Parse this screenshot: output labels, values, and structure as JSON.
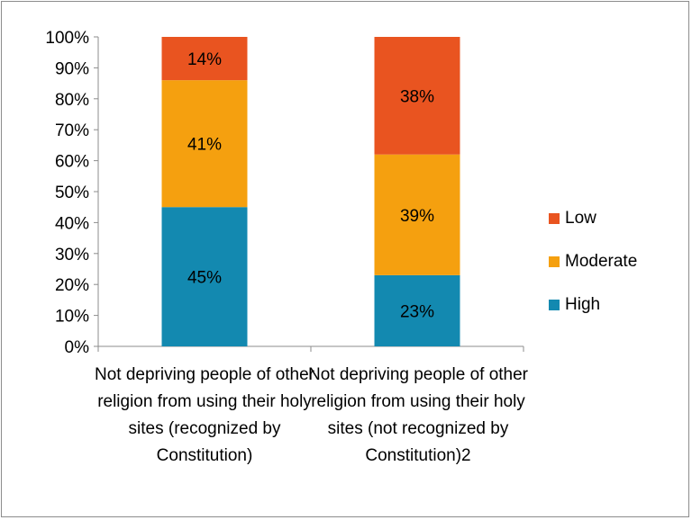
{
  "chart_data": {
    "type": "bar",
    "stacked": true,
    "categories": [
      "Not depriving people of other religion from using their holy sites (recognized by Constitution)",
      "Not depriving people of other religion from using their holy sites (not recognized by Constitution)2"
    ],
    "series": [
      {
        "name": "High",
        "values": [
          45,
          23
        ],
        "labels": [
          "45%",
          "23%"
        ],
        "color": "#1389b0"
      },
      {
        "name": "Moderate",
        "values": [
          41,
          39
        ],
        "labels": [
          "41%",
          "39%"
        ],
        "color": "#f5a00f"
      },
      {
        "name": "Low",
        "values": [
          14,
          38
        ],
        "labels": [
          "14%",
          "38%"
        ],
        "color": "#e95420"
      }
    ],
    "ylim": [
      0,
      100
    ],
    "yticks": [
      "0%",
      "10%",
      "20%",
      "30%",
      "40%",
      "50%",
      "60%",
      "70%",
      "80%",
      "90%",
      "100%"
    ],
    "title": "",
    "xlabel": "",
    "ylabel": "",
    "grid": false,
    "legend": "right"
  },
  "legend": [
    {
      "label": "Low",
      "color": "#e95420"
    },
    {
      "label": "Moderate",
      "color": "#f5a00f"
    },
    {
      "label": "High",
      "color": "#1389b0"
    }
  ]
}
